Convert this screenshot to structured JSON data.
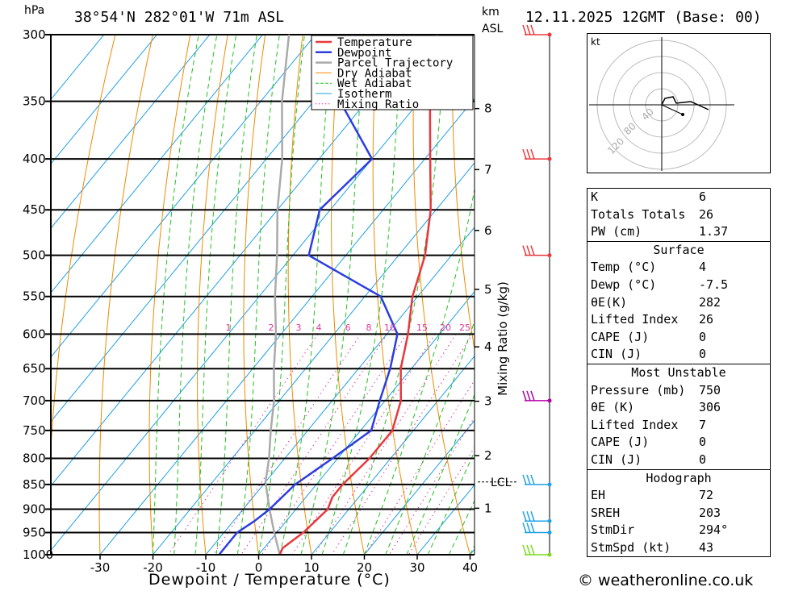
{
  "header": {
    "location": "38°54'N  282°01'W  71m  ASL",
    "datetime": "12.11.2025  12GMT  (Base: 00)",
    "pressure_unit": "hPa",
    "height_unit_1": "km",
    "height_unit_2": "ASL"
  },
  "chart_data": {
    "type": "line",
    "subtype": "skew-T log-P diagram",
    "xlabel": "Dewpoint / Temperature (°C)",
    "ylabel": "hPa",
    "x_ticks": [
      -30,
      -20,
      -10,
      0,
      10,
      20,
      30,
      40
    ],
    "pressure_levels": [
      300,
      350,
      400,
      450,
      500,
      550,
      600,
      650,
      700,
      750,
      800,
      850,
      900,
      950,
      1000
    ],
    "height_ticks_km": [
      {
        "label": "8",
        "p": 356
      },
      {
        "label": "7",
        "p": 410
      },
      {
        "label": "6",
        "p": 472
      },
      {
        "label": "5",
        "p": 541
      },
      {
        "label": "4",
        "p": 618
      },
      {
        "label": "3",
        "p": 701
      },
      {
        "label": "2",
        "p": 795
      },
      {
        "label": "1",
        "p": 898
      }
    ],
    "lcl": {
      "label": "LCL",
      "p": 845
    },
    "mixing_ratio_labels": [
      "1",
      "2",
      "3",
      "4",
      "6",
      "8",
      "10",
      "15",
      "20",
      "25"
    ],
    "mixing_ratio_axis_label": "Mixing Ratio (g/kg)",
    "legend": {
      "position": "top-right",
      "entries": [
        {
          "name": "Temperature",
          "color": "#e8383d",
          "style": "solid"
        },
        {
          "name": "Dewpoint",
          "color": "#2c3ce0",
          "style": "solid"
        },
        {
          "name": "Parcel Trajectory",
          "color": "#aaaaaa",
          "style": "solid"
        },
        {
          "name": "Dry Adiabat",
          "color": "#f08a00",
          "style": "solid"
        },
        {
          "name": "Wet Adiabat",
          "color": "#22c022",
          "style": "dashed"
        },
        {
          "name": "Isotherm",
          "color": "#1ea0e6",
          "style": "solid"
        },
        {
          "name": "Mixing Ratio",
          "color": "#e0359a",
          "style": "dotted"
        }
      ]
    },
    "series": [
      {
        "name": "Temperature",
        "points": [
          {
            "p": 1000,
            "t": 4
          },
          {
            "p": 985,
            "t": 3.5
          },
          {
            "p": 950,
            "t": 5
          },
          {
            "p": 925,
            "t": 5.5
          },
          {
            "p": 900,
            "t": 6
          },
          {
            "p": 875,
            "t": 5
          },
          {
            "p": 850,
            "t": 5
          },
          {
            "p": 800,
            "t": 6
          },
          {
            "p": 750,
            "t": 6
          },
          {
            "p": 700,
            "t": 3
          },
          {
            "p": 650,
            "t": -2
          },
          {
            "p": 600,
            "t": -6
          },
          {
            "p": 550,
            "t": -11
          },
          {
            "p": 500,
            "t": -15
          },
          {
            "p": 450,
            "t": -21
          },
          {
            "p": 400,
            "t": -29
          },
          {
            "p": 350,
            "t": -38
          },
          {
            "p": 300,
            "t": -47
          }
        ]
      },
      {
        "name": "Dewpoint",
        "points": [
          {
            "p": 1000,
            "t": -7.5
          },
          {
            "p": 950,
            "t": -7.5
          },
          {
            "p": 925,
            "t": -6
          },
          {
            "p": 900,
            "t": -5
          },
          {
            "p": 850,
            "t": -4
          },
          {
            "p": 800,
            "t": -1
          },
          {
            "p": 750,
            "t": 2
          },
          {
            "p": 700,
            "t": -1
          },
          {
            "p": 650,
            "t": -4
          },
          {
            "p": 600,
            "t": -8
          },
          {
            "p": 550,
            "t": -17
          },
          {
            "p": 500,
            "t": -37
          },
          {
            "p": 450,
            "t": -42
          },
          {
            "p": 400,
            "t": -40
          },
          {
            "p": 350,
            "t": -55
          },
          {
            "p": 300,
            "t": -63
          }
        ]
      },
      {
        "name": "Parcel Trajectory",
        "points": [
          {
            "p": 1000,
            "t": 4
          },
          {
            "p": 950,
            "t": -0.5
          },
          {
            "p": 900,
            "t": -5
          },
          {
            "p": 845,
            "t": -10
          },
          {
            "p": 800,
            "t": -13
          },
          {
            "p": 750,
            "t": -17
          },
          {
            "p": 700,
            "t": -21
          },
          {
            "p": 650,
            "t": -26
          },
          {
            "p": 600,
            "t": -31
          },
          {
            "p": 550,
            "t": -37
          },
          {
            "p": 500,
            "t": -43
          },
          {
            "p": 450,
            "t": -50
          },
          {
            "p": 400,
            "t": -57
          },
          {
            "p": 350,
            "t": -66
          },
          {
            "p": 300,
            "t": -75
          }
        ]
      }
    ],
    "wind_barbs": [
      {
        "p": 300,
        "color": "#e8383d"
      },
      {
        "p": 400,
        "color": "#e8383d"
      },
      {
        "p": 500,
        "color": "#e8383d"
      },
      {
        "p": 700,
        "color": "#b000a8"
      },
      {
        "p": 850,
        "color": "#1ea0e6"
      },
      {
        "p": 925,
        "color": "#1ea0e6"
      },
      {
        "p": 950,
        "color": "#1ea0e6"
      },
      {
        "p": 1000,
        "color": "#7ad81e"
      }
    ]
  },
  "hodograph": {
    "unit": "kt",
    "ring_labels": [
      "40",
      "80",
      "120"
    ]
  },
  "indices": {
    "k": {
      "label": "K",
      "value": "6"
    },
    "totals": {
      "label": "Totals Totals",
      "value": "26"
    },
    "pw": {
      "label": "PW (cm)",
      "value": "1.37"
    }
  },
  "surface": {
    "title": "Surface",
    "temp": {
      "label": "Temp (°C)",
      "value": "4"
    },
    "dewp": {
      "label": "Dewp (°C)",
      "value": "-7.5"
    },
    "theta_e": {
      "label": "θE(K)",
      "value": "282"
    },
    "li": {
      "label": "Lifted Index",
      "value": "26"
    },
    "cape": {
      "label": "CAPE (J)",
      "value": "0"
    },
    "cin": {
      "label": "CIN (J)",
      "value": "0"
    }
  },
  "most_unstable": {
    "title": "Most Unstable",
    "pressure": {
      "label": "Pressure (mb)",
      "value": "750"
    },
    "theta_e": {
      "label": "θE (K)",
      "value": "306"
    },
    "li": {
      "label": "Lifted Index",
      "value": "7"
    },
    "cape": {
      "label": "CAPE (J)",
      "value": "0"
    },
    "cin": {
      "label": "CIN (J)",
      "value": "0"
    }
  },
  "hodograph_table": {
    "title": "Hodograph",
    "eh": {
      "label": "EH",
      "value": "72"
    },
    "sreh": {
      "label": "SREH",
      "value": "203"
    },
    "stmdir": {
      "label": "StmDir",
      "value": "294°"
    },
    "stmspd": {
      "label": "StmSpd (kt)",
      "value": "43"
    }
  },
  "footer": {
    "credit": "© weatheronline.co.uk"
  }
}
